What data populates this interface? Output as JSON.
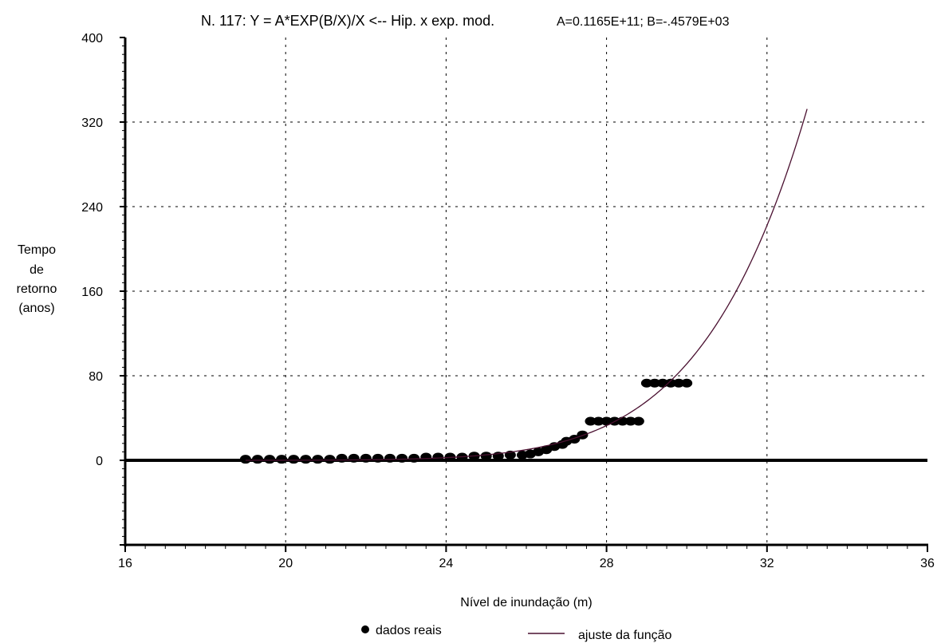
{
  "chart_data": {
    "type": "scatter",
    "title": "N. 117:   Y = A*EXP(B/X)/X <-- Hip. x exp. mod.",
    "title_params": "A=0.1165E+11;  B=-.4579E+03",
    "xlabel": "Nível de inundação (m)",
    "ylabel_lines": [
      "Tempo",
      "de",
      "retorno",
      "(anos)"
    ],
    "xlim": [
      16,
      36
    ],
    "ylim": [
      -80,
      400
    ],
    "x_ticks": [
      16,
      20,
      24,
      28,
      32,
      36
    ],
    "y_ticks": [
      0,
      80,
      160,
      240,
      320,
      400
    ],
    "grid": true,
    "legend_position": "bottom-center",
    "series": [
      {
        "name": "dados reais",
        "kind": "points",
        "color": "#000000",
        "x": [
          19.0,
          19.3,
          19.6,
          19.9,
          20.2,
          20.5,
          20.8,
          21.1,
          21.4,
          21.7,
          22.0,
          22.3,
          22.6,
          22.9,
          23.2,
          23.5,
          23.8,
          24.1,
          24.4,
          24.7,
          25.0,
          25.3,
          25.6,
          25.9,
          26.1,
          26.3,
          26.5,
          26.7,
          26.9,
          27.0,
          27.2,
          27.4,
          27.6,
          27.8,
          28.0,
          28.2,
          28.4,
          28.6,
          28.8,
          29.0,
          29.2,
          29.4,
          29.6,
          29.8,
          30.0
        ],
        "y": [
          1,
          1,
          1,
          1,
          1,
          1,
          1,
          1,
          2,
          2,
          2,
          2,
          2,
          2,
          2,
          3,
          3,
          3,
          3,
          4,
          4,
          4,
          5,
          5,
          6,
          8,
          10,
          13,
          15,
          18,
          20,
          24,
          37,
          37,
          37,
          37,
          37,
          37,
          37,
          73,
          73,
          73,
          73,
          73,
          73
        ]
      },
      {
        "name": "ajuste da função",
        "kind": "line",
        "color": "#4a1030",
        "function": "Y = A*EXP(B/X)/X",
        "A": 11650000000,
        "B": -457.9,
        "x_range": [
          19,
          33
        ]
      }
    ]
  }
}
